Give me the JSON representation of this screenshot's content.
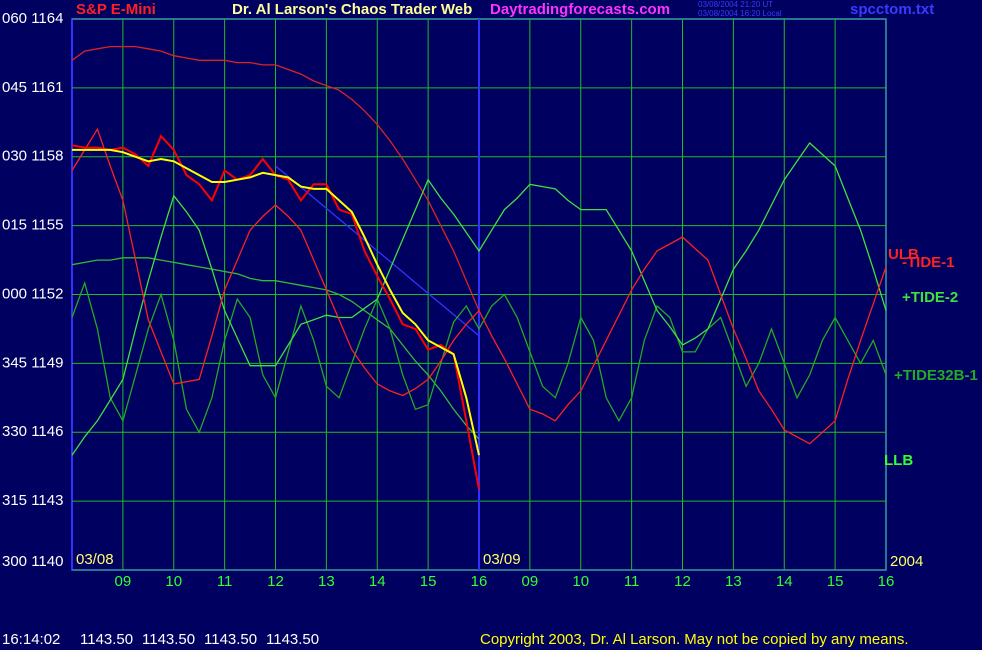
{
  "chart_data": {
    "type": "line",
    "instrument": "S&P E-Mini",
    "title": "Dr. Al Larson's Chaos Trader Web",
    "site": "Daytradingforecasts.com",
    "timestamps": [
      "03/08/2004 21:20 UT",
      "03/08/2004 16:20 Local"
    ],
    "file": "spcctom.txt",
    "ylim": [
      1140,
      1164
    ],
    "yticks": [
      {
        "value": 1164,
        "label": "060 1164"
      },
      {
        "value": 1161,
        "label": "045 1161"
      },
      {
        "value": 1158,
        "label": "030 1158"
      },
      {
        "value": 1155,
        "label": "015 1155"
      },
      {
        "value": 1152,
        "label": "000 1152"
      },
      {
        "value": 1149,
        "label": "345 1149"
      },
      {
        "value": 1146,
        "label": "330 1146"
      },
      {
        "value": 1143,
        "label": "315 1143"
      },
      {
        "value": 1140,
        "label": "300 1140"
      }
    ],
    "xlim": [
      0,
      16
    ],
    "xticks": [
      {
        "value": 1,
        "label": "09"
      },
      {
        "value": 2,
        "label": "10"
      },
      {
        "value": 3,
        "label": "11"
      },
      {
        "value": 4,
        "label": "12"
      },
      {
        "value": 5,
        "label": "13"
      },
      {
        "value": 6,
        "label": "14"
      },
      {
        "value": 7,
        "label": "15"
      },
      {
        "value": 8,
        "label": "16"
      },
      {
        "value": 9,
        "label": "09"
      },
      {
        "value": 10,
        "label": "10"
      },
      {
        "value": 11,
        "label": "11"
      },
      {
        "value": 12,
        "label": "12"
      },
      {
        "value": 13,
        "label": "13"
      },
      {
        "value": 14,
        "label": "14"
      },
      {
        "value": 15,
        "label": "15"
      },
      {
        "value": 16,
        "label": "16"
      }
    ],
    "date_labels": [
      {
        "value": 0,
        "label": "03/08"
      },
      {
        "value": 8,
        "label": "03/09"
      }
    ],
    "year": "2004",
    "grid": true,
    "annotations": [
      "ULB",
      "LLB"
    ],
    "x": [
      0,
      0.25,
      0.5,
      0.75,
      1,
      1.25,
      1.5,
      1.75,
      2,
      2.25,
      2.5,
      2.75,
      3,
      3.25,
      3.5,
      3.75,
      4,
      4.25,
      4.5,
      4.75,
      5,
      5.25,
      5.5,
      5.75,
      6,
      6.25,
      6.5,
      6.75,
      7,
      7.25,
      7.5,
      7.75,
      8,
      8.25,
      8.5,
      8.75,
      9,
      9.25,
      9.5,
      9.75,
      10,
      10.25,
      10.5,
      10.75,
      11,
      11.25,
      11.5,
      11.75,
      12,
      12.25,
      12.5,
      12.75,
      13,
      13.25,
      13.5,
      13.75,
      14,
      14.25,
      14.5,
      14.75,
      15,
      15.25,
      15.5,
      15.75,
      16
    ],
    "series": [
      {
        "color": "#dd2222",
        "values": [
          1162.2,
          1162.6,
          1162.7,
          1162.8,
          1162.8,
          1162.8,
          1162.7,
          1162.6,
          1162.4,
          1162.3,
          1162.2,
          1162.2,
          1162.2,
          1162.1,
          1162.1,
          1162.0,
          1162.0,
          1161.8,
          1161.6,
          1161.3,
          1161.1,
          1160.9,
          1160.5,
          1160.0,
          1159.4,
          1158.7,
          1157.9,
          1157.0,
          1156.1,
          1155.0,
          1153.9,
          1152.6,
          1151.3,
          null,
          null,
          null,
          null,
          null,
          null,
          null,
          null,
          null,
          null,
          null,
          null,
          null,
          null,
          null,
          null,
          null,
          null,
          null,
          null,
          null,
          null,
          null,
          null,
          null,
          null,
          null,
          null,
          null,
          null,
          null,
          null
        ]
      },
      {
        "color": "#33bb33",
        "values": [
          1153.3,
          1153.4,
          1153.5,
          1153.5,
          1153.6,
          1153.6,
          1153.6,
          1153.5,
          1153.4,
          1153.3,
          1153.2,
          1153.1,
          1153.0,
          1152.9,
          1152.7,
          1152.6,
          1152.6,
          1152.5,
          1152.4,
          1152.3,
          1152.2,
          1152.0,
          1151.7,
          1151.3,
          1150.9,
          1150.5,
          1149.8,
          1149.1,
          1148.5,
          1147.8,
          1147.0,
          1146.3,
          1145.7,
          null,
          null,
          null,
          null,
          null,
          null,
          null,
          null,
          null,
          null,
          null,
          null,
          null,
          null,
          null,
          null,
          null,
          null,
          null,
          null,
          null,
          null,
          null,
          null,
          null,
          null,
          null,
          null,
          null,
          null,
          null,
          null
        ]
      },
      {
        "color": "#3333ff",
        "values": [
          null,
          null,
          null,
          null,
          null,
          null,
          null,
          null,
          null,
          null,
          null,
          null,
          null,
          null,
          null,
          null,
          1157.6,
          1157.14,
          1156.68,
          1156.21,
          1155.75,
          1155.29,
          1154.83,
          1154.36,
          1153.9,
          1153.44,
          1152.98,
          1152.51,
          1152.05,
          1151.59,
          1151.13,
          1150.66,
          1150.2,
          null,
          null,
          null,
          null,
          null,
          null,
          null,
          null,
          null,
          null,
          null,
          null,
          null,
          null,
          null,
          null,
          null,
          null,
          null,
          null,
          null,
          null,
          null,
          null,
          null,
          null,
          null,
          null,
          null,
          null,
          null,
          null
        ]
      },
      {
        "name": "+TIDE32B-1",
        "color": "#22aa22",
        "values": [
          1151.0,
          1152.5,
          1150.5,
          1147.5,
          1146.5,
          1148.5,
          1150.5,
          1152.0,
          1150.0,
          1147.0,
          1146.0,
          1147.5,
          1150.0,
          1151.8,
          1151.0,
          1148.5,
          1147.5,
          1149.5,
          1151.5,
          1150.0,
          1148.0,
          1147.5,
          1149.0,
          1150.5,
          1151.8,
          1150.5,
          1148.5,
          1147.0,
          1147.2,
          1149.0,
          1150.8,
          1151.5,
          1150.5,
          1151.5,
          1152.0,
          1151.0,
          1149.5,
          1148.0,
          1147.5,
          1149.0,
          1151.0,
          1150.0,
          1147.5,
          1146.5,
          1147.5,
          1150.0,
          1151.5,
          1151.0,
          1149.5,
          1149.5,
          1150.5,
          1151.0,
          1149.5,
          1148.0,
          1149.0,
          1150.5,
          1149.0,
          1147.5,
          1148.5,
          1150.0,
          1151.0,
          1150.0,
          1149.0,
          1150.0,
          1148.5
        ]
      },
      {
        "name": "+TIDE-2",
        "color": "#40e040",
        "values": [
          1145.0,
          1145.8,
          1146.5,
          1147.4,
          1148.3,
          1150.5,
          1152.6,
          1154.5,
          1156.3,
          1155.6,
          1154.8,
          1153.1,
          1151.3,
          1150.1,
          1148.9,
          1148.9,
          1148.9,
          1149.8,
          1150.7,
          1150.9,
          1151.1,
          1151.0,
          1151.0,
          1151.4,
          1151.8,
          1153.1,
          1154.4,
          1155.7,
          1157.0,
          1156.2,
          1155.5,
          1154.7,
          1153.9,
          1154.8,
          1155.7,
          1156.2,
          1156.8,
          1156.7,
          1156.6,
          1156.1,
          1155.7,
          1155.7,
          1155.7,
          1154.8,
          1153.9,
          1152.6,
          1151.3,
          1150.6,
          1149.8,
          1150.1,
          1150.5,
          1151.8,
          1153.1,
          1153.9,
          1154.8,
          1155.9,
          1157.0,
          1157.8,
          1158.6,
          1158.1,
          1157.6,
          1156.2,
          1154.8,
          1153.1,
          1151.3
        ]
      },
      {
        "name": "-TIDE-1",
        "color": "#ff2020",
        "values": [
          1157.4,
          1158.3,
          1159.2,
          1157.6,
          1156.1,
          1153.5,
          1150.9,
          1149.5,
          1148.1,
          1148.2,
          1148.3,
          1150.2,
          1152.2,
          1153.5,
          1154.8,
          1155.4,
          1155.9,
          1155.4,
          1154.8,
          1153.5,
          1152.2,
          1150.9,
          1149.6,
          1148.8,
          1148.1,
          1147.8,
          1147.6,
          1147.9,
          1148.3,
          1149.1,
          1150.0,
          1150.7,
          1151.3,
          1150.2,
          1149.2,
          1148.1,
          1147.0,
          1146.8,
          1146.5,
          1147.2,
          1147.8,
          1148.9,
          1150.0,
          1151.1,
          1152.2,
          1153.1,
          1153.9,
          1154.2,
          1154.5,
          1154.0,
          1153.5,
          1152.0,
          1150.5,
          1149.2,
          1147.8,
          1147.0,
          1146.1,
          1145.8,
          1145.5,
          1146.0,
          1146.5,
          1148.3,
          1150.0,
          1151.6,
          1153.2
        ]
      },
      {
        "color": "#ff0000",
        "values": [
          1158.5,
          1158.4,
          1158.4,
          1158.3,
          1158.4,
          1158.1,
          1157.6,
          1158.9,
          1158.3,
          1157.2,
          1156.8,
          1156.1,
          1157.4,
          1157.0,
          1157.2,
          1157.9,
          1157.2,
          1157.0,
          1156.1,
          1156.8,
          1156.8,
          1155.7,
          1155.5,
          1153.9,
          1152.8,
          1151.8,
          1150.7,
          1150.5,
          1149.6,
          1149.8,
          1149.4,
          1146.5,
          1143.5,
          null,
          null,
          null,
          null,
          null,
          null,
          null,
          null,
          null,
          null,
          null,
          null,
          null,
          null,
          null,
          null,
          null,
          null,
          null,
          null,
          null,
          null,
          null,
          null,
          null,
          null,
          null,
          null,
          null,
          null,
          null,
          null
        ]
      },
      {
        "color": "#ffff00",
        "values": [
          1158.3,
          1158.3,
          1158.3,
          1158.3,
          1158.2,
          1158.0,
          1157.8,
          1157.9,
          1157.8,
          1157.5,
          1157.2,
          1156.9,
          1156.9,
          1157.0,
          1157.1,
          1157.3,
          1157.2,
          1157.1,
          1156.7,
          1156.6,
          1156.6,
          1156.1,
          1155.6,
          1154.5,
          1153.3,
          1152.2,
          1151.2,
          1150.7,
          1150.0,
          1149.7,
          1149.4,
          1147.5,
          1145.0,
          null,
          null,
          null,
          null,
          null,
          null,
          null,
          null,
          null,
          null,
          null,
          null,
          null,
          null,
          null,
          null,
          null,
          null,
          null,
          null,
          null,
          null,
          null,
          null,
          null,
          null,
          null,
          null,
          null,
          null,
          null,
          null
        ]
      }
    ]
  },
  "status": {
    "time": "16:14:02",
    "quotes": [
      "1143.50",
      "1143.50",
      "1143.50",
      "1143.50"
    ]
  },
  "copyright": "Copyright 2003, Dr. Al Larson. May not be copied by any means."
}
